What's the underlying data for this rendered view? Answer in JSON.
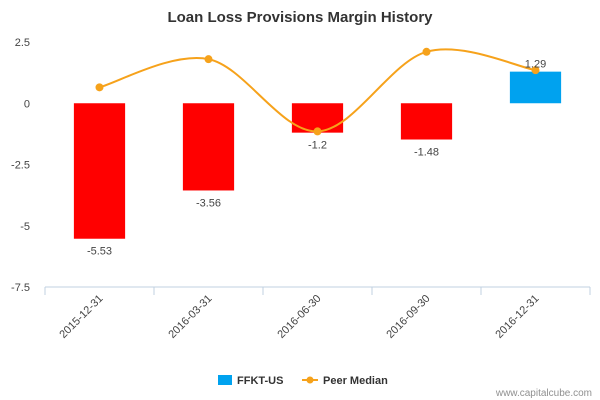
{
  "chart_data": {
    "type": "bar",
    "title": "Loan Loss Provisions Margin History",
    "categories": [
      "2015-12-31",
      "2016-03-31",
      "2016-06-30",
      "2016-09-30",
      "2016-12-31"
    ],
    "series": [
      {
        "name": "FFKT-US",
        "type": "bar",
        "values": [
          -5.53,
          -3.56,
          -1.2,
          -1.48,
          1.29
        ],
        "data_labels": [
          "-5.53",
          "-3.56",
          "-1.2",
          "-1.48",
          "1.29"
        ],
        "positive_color": "#00a2ef",
        "negative_color": "#ff0000"
      },
      {
        "name": "Peer Median",
        "type": "line",
        "values": [
          0.65,
          1.8,
          -1.15,
          2.1,
          1.35
        ],
        "color": "#f6a21b"
      }
    ],
    "y_ticks": [
      "2.5",
      "0",
      "-2.5",
      "-5",
      "-7.5"
    ],
    "y_tick_values": [
      2.5,
      0,
      -2.5,
      -5,
      -7.5
    ],
    "ylim": [
      -7.5,
      2.5
    ],
    "xlabel": "",
    "ylabel": "",
    "legend_position": "bottom-center",
    "grid": false
  },
  "credit": "www.capitalcube.com"
}
